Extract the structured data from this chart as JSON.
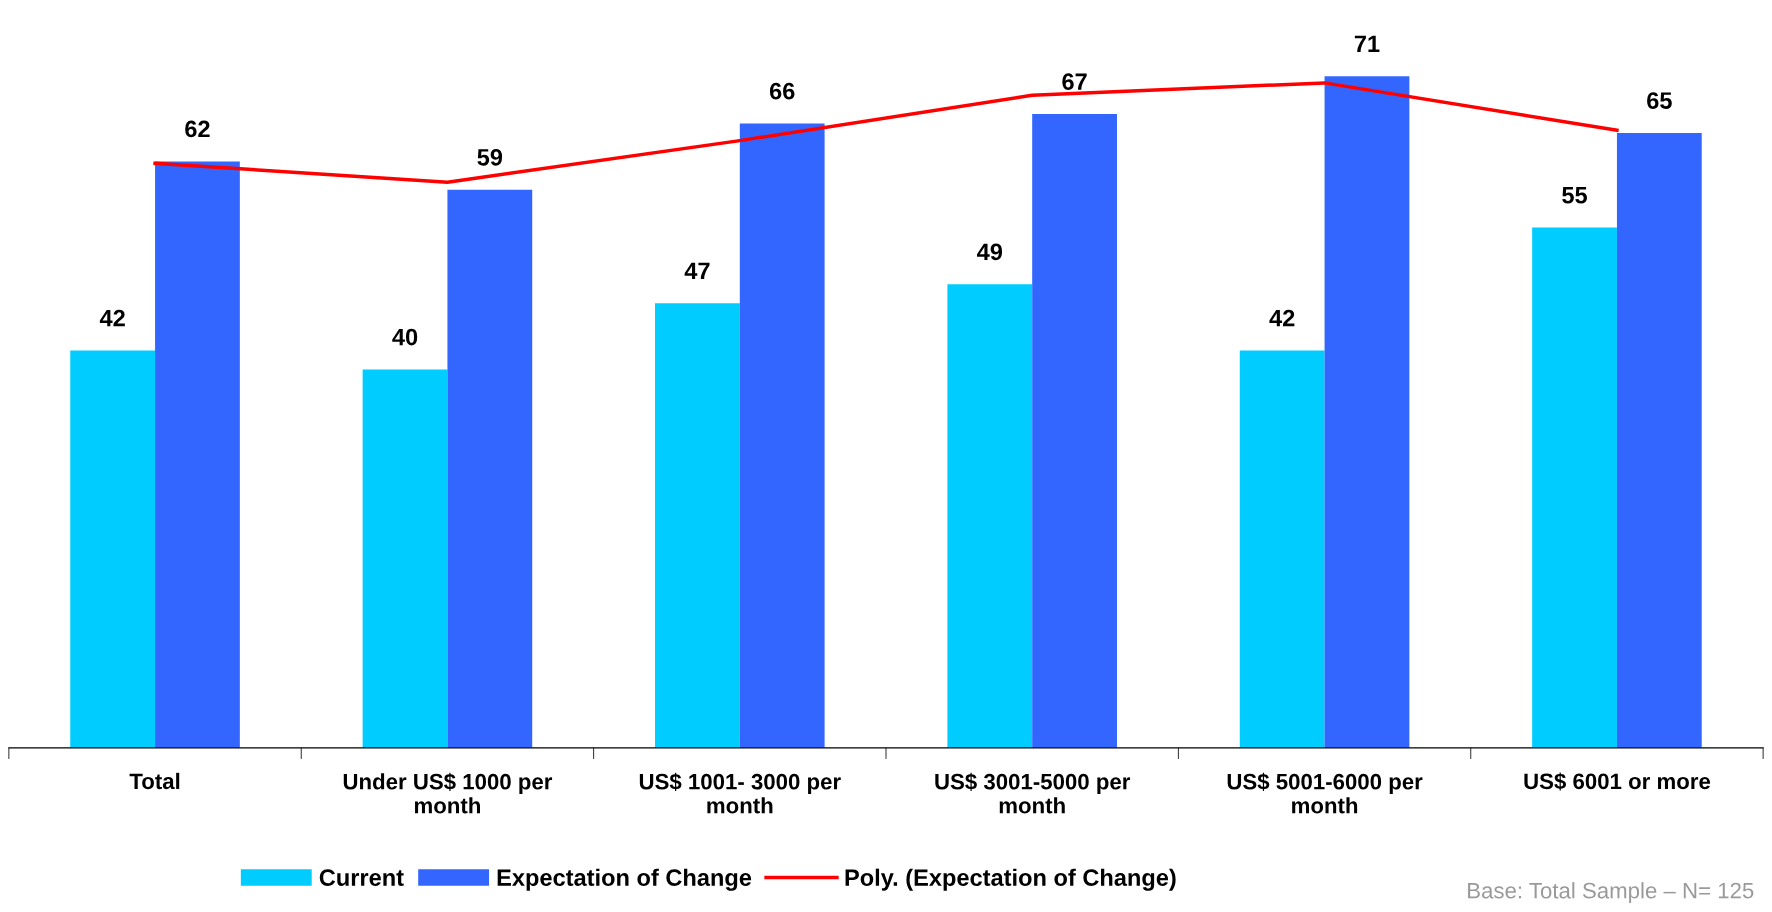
{
  "chart_data": {
    "type": "bar",
    "categories": [
      "Total",
      "Under US$ 1000 per month",
      "US$ 1001- 3000 per month",
      "US$ 3001-5000 per month",
      "US$ 5001-6000 per month",
      "US$ 6001 or more"
    ],
    "series": [
      {
        "name": "Current",
        "color": "#00ccff",
        "values": [
          42,
          40,
          47,
          49,
          42,
          55
        ],
        "value_labels": [
          "42",
          "40",
          "47",
          "49",
          "42",
          "55"
        ]
      },
      {
        "name": "Expectation of Change",
        "color": "#3366ff",
        "values": [
          62,
          59,
          66,
          67,
          71,
          65
        ],
        "value_labels": [
          "62",
          "59",
          "66",
          "67",
          "71",
          "65"
        ]
      },
      {
        "name": "Poly. (Expectation of Change)",
        "type": "line",
        "color": "#ff0000",
        "values": [
          61.8,
          59.8,
          64.2,
          69.0,
          70.3,
          65.3
        ]
      }
    ],
    "tick_labels": "x",
    "legend": "bottom",
    "grid": false,
    "annotations": [
      "Base: Total Sample – N= 125"
    ]
  }
}
